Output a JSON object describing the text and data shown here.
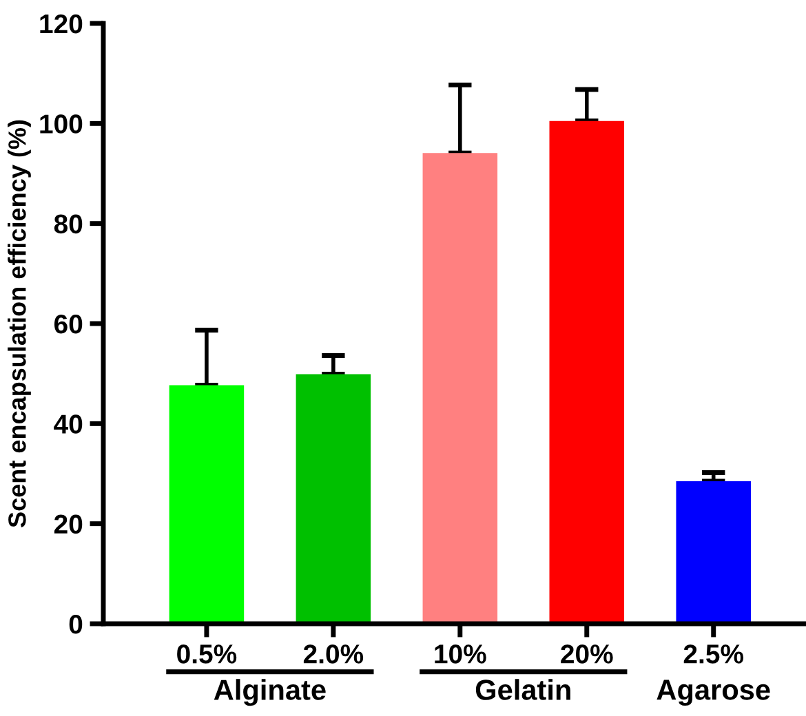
{
  "chart_data": {
    "type": "bar",
    "ylabel": "Scent encapsulation efficiency (%)",
    "categories": [
      "0.5%",
      "2.0%",
      "10%",
      "20%",
      "2.5%"
    ],
    "values": [
      47.7,
      49.9,
      94.1,
      100.5,
      28.5
    ],
    "colors": [
      "#00ff00",
      "#00c000",
      "#ff8080",
      "#ff0000",
      "#0000ff"
    ],
    "errors": [
      [
        47.7,
        58.7
      ],
      [
        49.9,
        53.6
      ],
      [
        94.1,
        107.7
      ],
      [
        100.5,
        106.8
      ],
      [
        28.5,
        30.2
      ]
    ],
    "ylim": [
      0,
      120
    ],
    "yticks": [
      0,
      20,
      40,
      60,
      80,
      100,
      120
    ],
    "annotations": [
      "Alginate",
      "Gelatin",
      "Agarose"
    ],
    "grid": false,
    "legend": false
  }
}
